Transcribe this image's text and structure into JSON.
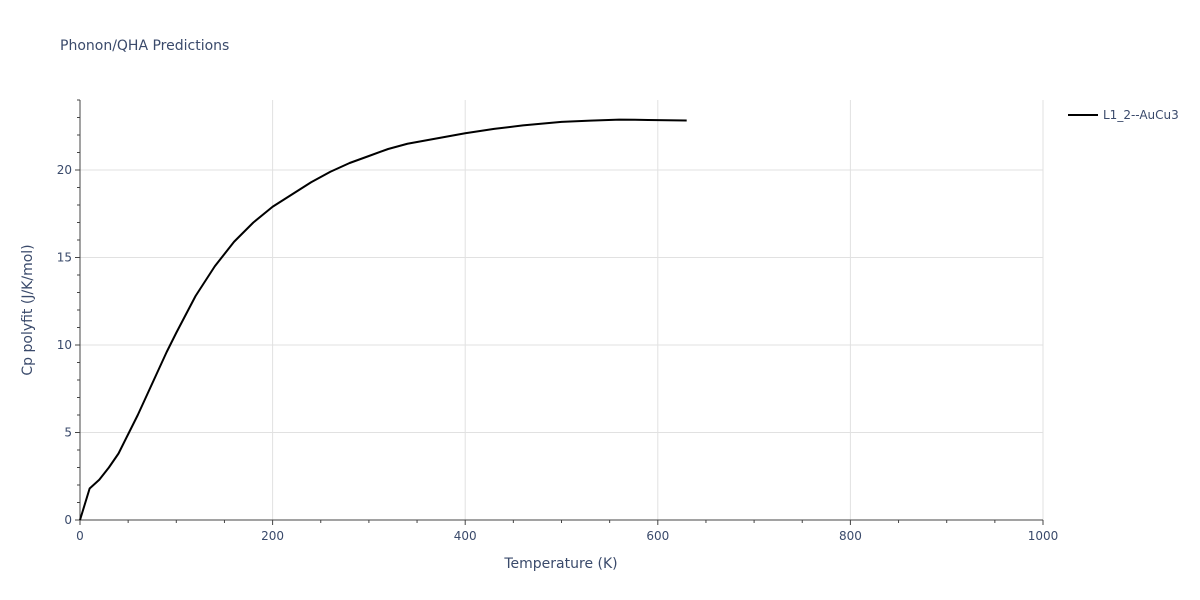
{
  "chart_data": {
    "type": "line",
    "title": "Phonon/QHA Predictions",
    "xlabel": "Temperature (K)",
    "ylabel": "Cp polyfit (J/K/mol)",
    "xlim": [
      0,
      1000
    ],
    "ylim": [
      0,
      24
    ],
    "xticks": [
      0,
      200,
      400,
      600,
      800,
      1000
    ],
    "yticks": [
      0,
      5,
      10,
      15,
      20
    ],
    "grid": true,
    "legend_position": "top-right",
    "series": [
      {
        "name": "L1_2--AuCu3",
        "color": "#000000",
        "x": [
          0,
          10,
          20,
          30,
          40,
          50,
          60,
          70,
          80,
          90,
          100,
          120,
          140,
          160,
          180,
          200,
          220,
          240,
          260,
          280,
          300,
          320,
          340,
          360,
          380,
          400,
          430,
          460,
          500,
          530,
          560,
          590,
          630
        ],
        "y": [
          0,
          1.8,
          2.3,
          3.0,
          3.8,
          4.9,
          6.0,
          7.2,
          8.4,
          9.6,
          10.7,
          12.8,
          14.5,
          15.9,
          17.0,
          17.9,
          18.6,
          19.3,
          19.9,
          20.4,
          20.8,
          21.2,
          21.5,
          21.7,
          21.9,
          22.1,
          22.35,
          22.55,
          22.75,
          22.82,
          22.88,
          22.86,
          22.83
        ]
      }
    ]
  }
}
